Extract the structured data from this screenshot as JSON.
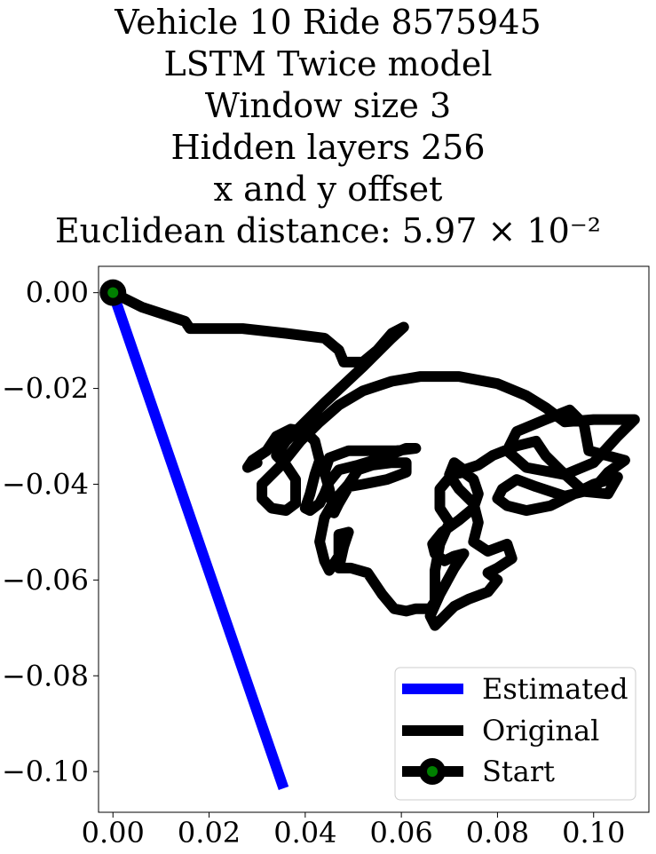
{
  "chart_data": {
    "type": "line",
    "title": [
      "Vehicle 10 Ride 8575945",
      "LSTM Twice model",
      "Window size 3",
      "Hidden layers 256",
      "x and y offset",
      "Euclidean distance: 5.97 × 10⁻²"
    ],
    "xlabel": "",
    "ylabel": "",
    "xlim": [
      -0.003,
      0.1115
    ],
    "ylim": [
      -0.1085,
      0.0055
    ],
    "x_ticks": [
      "0.00",
      "0.02",
      "0.04",
      "0.06",
      "0.08",
      "0.10"
    ],
    "y_ticks": [
      "0.00",
      "−0.02",
      "−0.04",
      "−0.06",
      "−0.08",
      "−0.10"
    ],
    "x_tick_values": [
      0,
      0.02,
      0.04,
      0.06,
      0.08,
      0.1
    ],
    "y_tick_values": [
      0,
      -0.02,
      -0.04,
      -0.06,
      -0.08,
      -0.1
    ],
    "grid": false,
    "legend_position": "bottom-right",
    "series": [
      {
        "name": "Estimated",
        "color": "#0000ff",
        "points": [
          [
            0.0,
            0.0
          ],
          [
            0.012,
            -0.035
          ],
          [
            0.024,
            -0.07
          ],
          [
            0.0355,
            -0.1035
          ]
        ]
      },
      {
        "name": "Original",
        "color": "#000000",
        "points": [
          [
            0.0,
            0.0
          ],
          [
            0.006,
            -0.003
          ],
          [
            0.012,
            -0.005
          ],
          [
            0.015,
            -0.006
          ],
          [
            0.016,
            -0.0075
          ],
          [
            0.02,
            -0.0075
          ],
          [
            0.027,
            -0.0075
          ],
          [
            0.036,
            -0.0085
          ],
          [
            0.044,
            -0.0095
          ],
          [
            0.047,
            -0.012
          ],
          [
            0.048,
            -0.0145
          ],
          [
            0.052,
            -0.0145
          ],
          [
            0.055,
            -0.012
          ],
          [
            0.058,
            -0.0085
          ],
          [
            0.0605,
            -0.0072
          ],
          [
            0.058,
            -0.0095
          ],
          [
            0.052,
            -0.0155
          ],
          [
            0.044,
            -0.023
          ],
          [
            0.04,
            -0.027
          ],
          [
            0.036,
            -0.031
          ],
          [
            0.034,
            -0.034
          ],
          [
            0.036,
            -0.036
          ],
          [
            0.038,
            -0.039
          ],
          [
            0.038,
            -0.044
          ],
          [
            0.036,
            -0.0455
          ],
          [
            0.033,
            -0.045
          ],
          [
            0.031,
            -0.043
          ],
          [
            0.031,
            -0.04
          ],
          [
            0.035,
            -0.036
          ],
          [
            0.039,
            -0.031
          ],
          [
            0.043,
            -0.027
          ],
          [
            0.047,
            -0.0235
          ],
          [
            0.052,
            -0.0205
          ],
          [
            0.058,
            -0.0185
          ],
          [
            0.064,
            -0.0175
          ],
          [
            0.072,
            -0.0175
          ],
          [
            0.08,
            -0.019
          ],
          [
            0.086,
            -0.0215
          ],
          [
            0.09,
            -0.024
          ],
          [
            0.094,
            -0.027
          ],
          [
            0.1,
            -0.0265
          ],
          [
            0.1085,
            -0.0265
          ],
          [
            0.105,
            -0.03
          ],
          [
            0.1,
            -0.0355
          ],
          [
            0.094,
            -0.038
          ],
          [
            0.086,
            -0.0365
          ],
          [
            0.082,
            -0.033
          ],
          [
            0.084,
            -0.029
          ],
          [
            0.09,
            -0.0265
          ],
          [
            0.095,
            -0.0245
          ],
          [
            0.098,
            -0.0275
          ],
          [
            0.099,
            -0.033
          ],
          [
            0.1065,
            -0.035
          ],
          [
            0.103,
            -0.0375
          ],
          [
            0.1,
            -0.041
          ],
          [
            0.094,
            -0.0425
          ],
          [
            0.088,
            -0.0405
          ],
          [
            0.084,
            -0.039
          ],
          [
            0.081,
            -0.041
          ],
          [
            0.08,
            -0.043
          ],
          [
            0.082,
            -0.0445
          ],
          [
            0.086,
            -0.0455
          ],
          [
            0.091,
            -0.0445
          ],
          [
            0.095,
            -0.0425
          ],
          [
            0.1,
            -0.04
          ],
          [
            0.105,
            -0.0385
          ],
          [
            0.103,
            -0.042
          ],
          [
            0.098,
            -0.0415
          ],
          [
            0.093,
            -0.037
          ],
          [
            0.09,
            -0.034
          ],
          [
            0.088,
            -0.031
          ],
          [
            0.084,
            -0.032
          ],
          [
            0.079,
            -0.034
          ],
          [
            0.076,
            -0.036
          ],
          [
            0.073,
            -0.037
          ],
          [
            0.071,
            -0.0355
          ],
          [
            0.07,
            -0.038
          ],
          [
            0.072,
            -0.041
          ],
          [
            0.075,
            -0.044
          ],
          [
            0.076,
            -0.048
          ],
          [
            0.075,
            -0.052
          ],
          [
            0.078,
            -0.054
          ],
          [
            0.082,
            -0.0525
          ],
          [
            0.083,
            -0.0555
          ],
          [
            0.08,
            -0.0575
          ],
          [
            0.078,
            -0.0585
          ],
          [
            0.08,
            -0.06
          ],
          [
            0.078,
            -0.0625
          ],
          [
            0.074,
            -0.064
          ],
          [
            0.071,
            -0.0655
          ],
          [
            0.0685,
            -0.068
          ],
          [
            0.067,
            -0.0695
          ],
          [
            0.066,
            -0.0675
          ],
          [
            0.068,
            -0.063
          ],
          [
            0.071,
            -0.0575
          ],
          [
            0.073,
            -0.0545
          ],
          [
            0.071,
            -0.055
          ],
          [
            0.069,
            -0.056
          ],
          [
            0.067,
            -0.0545
          ],
          [
            0.0665,
            -0.0525
          ],
          [
            0.0685,
            -0.05
          ],
          [
            0.072,
            -0.0475
          ],
          [
            0.075,
            -0.045
          ],
          [
            0.076,
            -0.042
          ],
          [
            0.075,
            -0.039
          ],
          [
            0.073,
            -0.0375
          ],
          [
            0.0705,
            -0.038
          ],
          [
            0.068,
            -0.041
          ],
          [
            0.068,
            -0.045
          ],
          [
            0.07,
            -0.048
          ],
          [
            0.068,
            -0.0525
          ],
          [
            0.067,
            -0.058
          ],
          [
            0.067,
            -0.0645
          ],
          [
            0.066,
            -0.066
          ],
          [
            0.063,
            -0.066
          ],
          [
            0.061,
            -0.0665
          ],
          [
            0.0585,
            -0.066
          ],
          [
            0.056,
            -0.063
          ],
          [
            0.053,
            -0.0585
          ],
          [
            0.0495,
            -0.0575
          ],
          [
            0.047,
            -0.0575
          ],
          [
            0.048,
            -0.053
          ],
          [
            0.049,
            -0.05
          ],
          [
            0.047,
            -0.0505
          ],
          [
            0.047,
            -0.055
          ],
          [
            0.045,
            -0.058
          ],
          [
            0.044,
            -0.056
          ],
          [
            0.043,
            -0.052
          ],
          [
            0.044,
            -0.047
          ],
          [
            0.046,
            -0.0435
          ],
          [
            0.049,
            -0.04
          ],
          [
            0.051,
            -0.037
          ],
          [
            0.054,
            -0.036
          ],
          [
            0.058,
            -0.0355
          ],
          [
            0.061,
            -0.0355
          ],
          [
            0.061,
            -0.0375
          ],
          [
            0.057,
            -0.039
          ],
          [
            0.052,
            -0.04
          ],
          [
            0.049,
            -0.0405
          ],
          [
            0.047,
            -0.044
          ],
          [
            0.046,
            -0.046
          ],
          [
            0.045,
            -0.041
          ],
          [
            0.044,
            -0.0375
          ],
          [
            0.045,
            -0.0345
          ],
          [
            0.049,
            -0.033
          ],
          [
            0.054,
            -0.033
          ],
          [
            0.059,
            -0.033
          ],
          [
            0.063,
            -0.0325
          ],
          [
            0.061,
            -0.0325
          ],
          [
            0.056,
            -0.0345
          ],
          [
            0.051,
            -0.036
          ],
          [
            0.047,
            -0.037
          ],
          [
            0.045,
            -0.0395
          ],
          [
            0.044,
            -0.042
          ],
          [
            0.043,
            -0.044
          ],
          [
            0.041,
            -0.0455
          ],
          [
            0.04,
            -0.045
          ],
          [
            0.041,
            -0.042
          ],
          [
            0.042,
            -0.038
          ],
          [
            0.043,
            -0.035
          ],
          [
            0.042,
            -0.031
          ],
          [
            0.04,
            -0.029
          ],
          [
            0.037,
            -0.0285
          ],
          [
            0.034,
            -0.03
          ],
          [
            0.032,
            -0.033
          ],
          [
            0.029,
            -0.035
          ],
          [
            0.028,
            -0.0365
          ],
          [
            0.03,
            -0.0355
          ]
        ]
      },
      {
        "name": "Start",
        "color": "#000000",
        "marker_color": "#008000",
        "points": [
          [
            0.0,
            0.0
          ]
        ]
      }
    ]
  }
}
